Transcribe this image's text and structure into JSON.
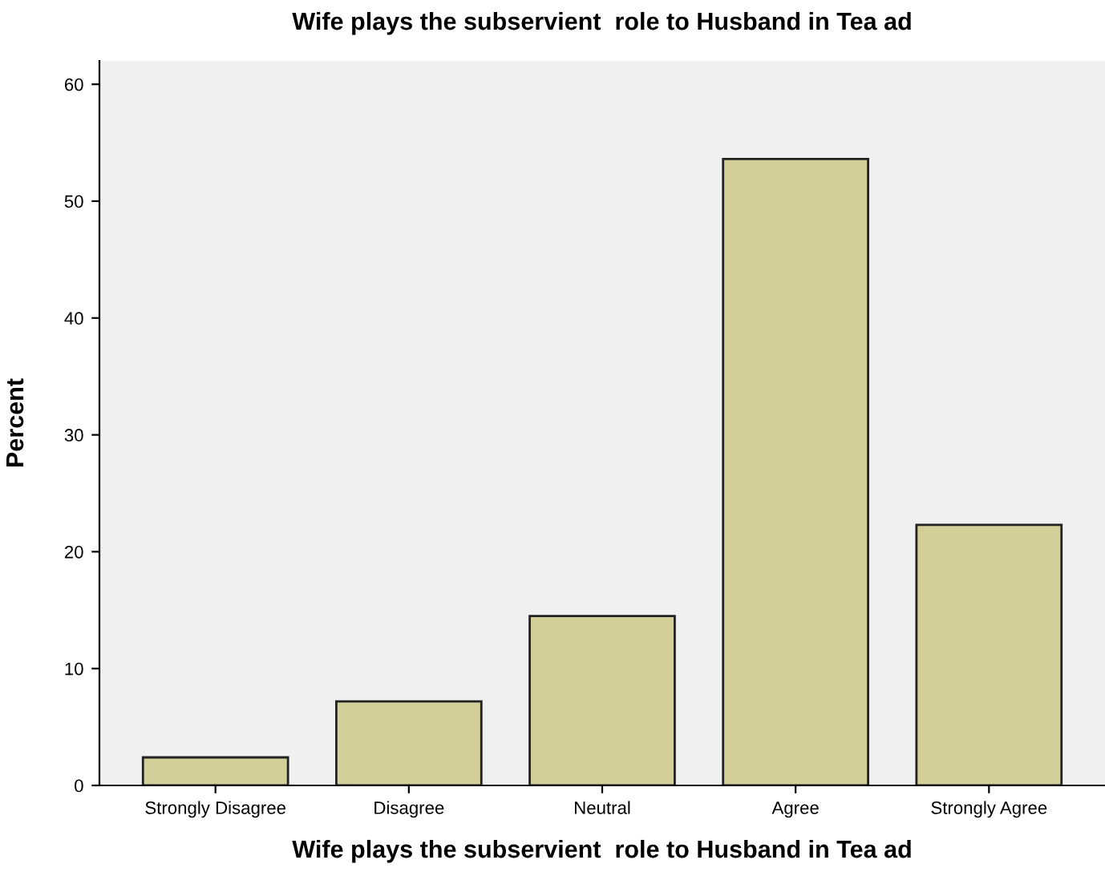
{
  "chart_data": {
    "type": "bar",
    "title": "Wife plays the subservient  role to Husband in Tea ad",
    "xlabel": "Wife plays the subservient  role to Husband in Tea ad",
    "ylabel": "Percent",
    "categories": [
      "Strongly Disagree",
      "Disagree",
      "Neutral",
      "Agree",
      "Strongly Agree"
    ],
    "values": [
      2.4,
      7.2,
      14.5,
      53.6,
      22.3
    ],
    "color": "#d3cf98",
    "ylim": [
      0,
      62
    ],
    "yticks": [
      0,
      10,
      20,
      30,
      40,
      50,
      60
    ],
    "grid": false,
    "legend": false
  }
}
